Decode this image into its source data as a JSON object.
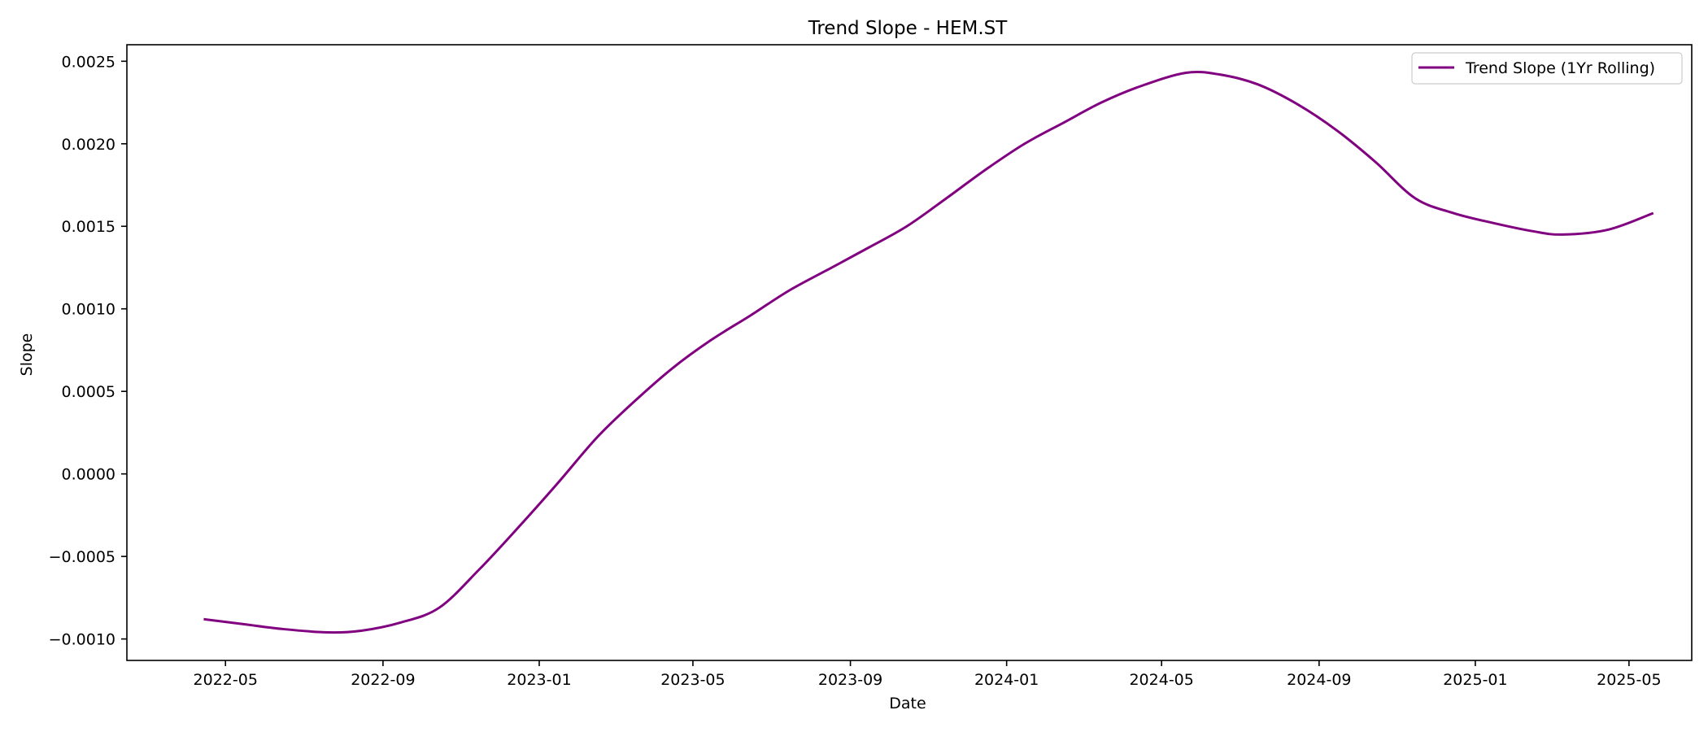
{
  "chart_data": {
    "type": "line",
    "title": "Trend Slope - HEM.ST",
    "xlabel": "Date",
    "ylabel": "Slope",
    "x_axis": "date",
    "xlim": [
      "2022-02-13",
      "2025-06-19"
    ],
    "ylim": [
      -0.00113,
      0.0026
    ],
    "x_ticks": [
      "2022-05-01",
      "2022-09-01",
      "2023-01-01",
      "2023-05-01",
      "2023-09-01",
      "2024-01-01",
      "2024-05-01",
      "2024-09-01",
      "2025-01-01",
      "2025-05-01"
    ],
    "x_tick_labels": [
      "2022-05",
      "2022-09",
      "2023-01",
      "2023-05",
      "2023-09",
      "2024-01",
      "2024-05",
      "2024-09",
      "2025-01",
      "2025-05"
    ],
    "y_ticks": [
      -0.001,
      -0.0005,
      0.0,
      0.0005,
      0.001,
      0.0015,
      0.002,
      0.0025
    ],
    "y_tick_labels": [
      "−0.0010",
      "−0.0005",
      "0.0000",
      "0.0005",
      "0.0010",
      "0.0015",
      "0.0020",
      "0.0025"
    ],
    "grid": false,
    "legend": {
      "position": "top-right"
    },
    "series": [
      {
        "name": "Trend Slope (1Yr Rolling)",
        "color": "#800080",
        "x": [
          "2022-04-14",
          "2022-05-15",
          "2022-06-15",
          "2022-07-20",
          "2022-08-15",
          "2022-09-15",
          "2022-10-15",
          "2022-11-15",
          "2022-12-15",
          "2023-01-15",
          "2023-02-15",
          "2023-03-15",
          "2023-04-15",
          "2023-05-15",
          "2023-06-15",
          "2023-07-15",
          "2023-08-15",
          "2023-09-15",
          "2023-10-15",
          "2023-11-15",
          "2023-12-15",
          "2024-01-15",
          "2024-02-15",
          "2024-03-15",
          "2024-04-15",
          "2024-05-20",
          "2024-06-15",
          "2024-07-15",
          "2024-08-15",
          "2024-09-15",
          "2024-10-15",
          "2024-11-15",
          "2024-12-15",
          "2025-01-15",
          "2025-02-15",
          "2025-03-10",
          "2025-04-15",
          "2025-05-20"
        ],
        "values": [
          -0.00088,
          -0.00091,
          -0.00094,
          -0.00096,
          -0.00095,
          -0.0009,
          -0.00081,
          -0.00058,
          -0.00033,
          -6e-05,
          0.00022,
          0.00043,
          0.00064,
          0.00081,
          0.00096,
          0.00111,
          0.00124,
          0.00137,
          0.0015,
          0.00167,
          0.00184,
          0.002,
          0.00213,
          0.00225,
          0.00235,
          0.00243,
          0.00242,
          0.00236,
          0.00224,
          0.00208,
          0.00189,
          0.00167,
          0.00158,
          0.00152,
          0.00147,
          0.00145,
          0.00148,
          0.00158
        ]
      }
    ]
  }
}
